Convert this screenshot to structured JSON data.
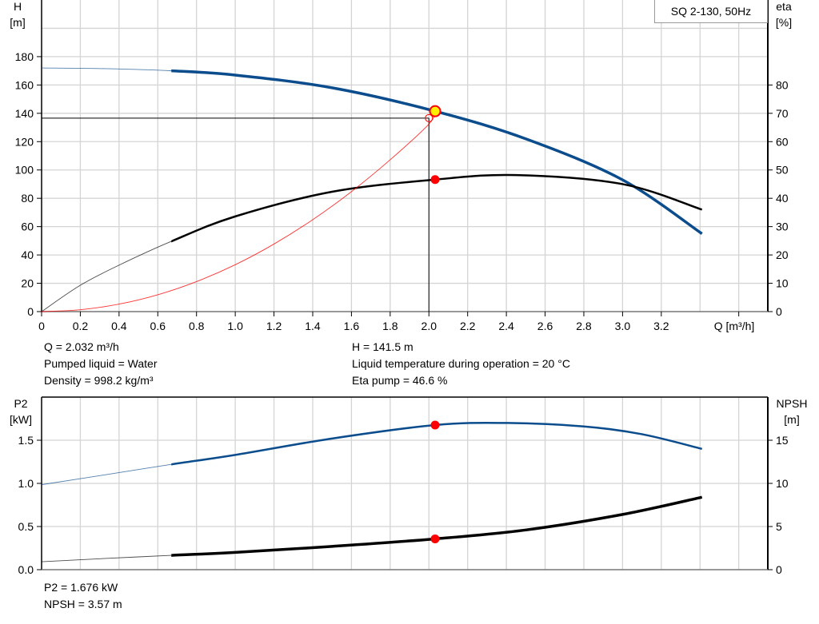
{
  "model_label": "SQ 2-130, 50Hz",
  "info_top": {
    "q": "Q = 2.032 m³/h",
    "liquid": "Pumped liquid = Water",
    "density": "Density = 998.2 kg/m³",
    "h": "H = 141.5 m",
    "temperature": "Liquid temperature during operation = 20 °C",
    "eta": "Eta pump = 46.6 %"
  },
  "info_bottom": {
    "p2": "P2 = 1.676 kW",
    "npsh": "NPSH = 3.57 m"
  },
  "colors": {
    "blue": "#0b4c8c",
    "black": "#000000",
    "red": "#ff0000",
    "yellow": "#ffee00",
    "grid": "#d4d4d4"
  },
  "chart_data": [
    {
      "type": "line",
      "xlabel": "Q [m³/h]",
      "ylabel": "H [m]",
      "y2label": "eta [%]",
      "xlim": [
        0,
        3.75
      ],
      "ylim": [
        0,
        220
      ],
      "y2lim": [
        0,
        110
      ],
      "xticks": [
        "0",
        "0.2",
        "0.4",
        "0.6",
        "0.8",
        "1.0",
        "1.2",
        "1.4",
        "1.6",
        "1.8",
        "2.0",
        "2.2",
        "2.4",
        "2.6",
        "2.8",
        "3.0",
        "3.2"
      ],
      "yticks": [
        "0",
        "20",
        "40",
        "60",
        "80",
        "100",
        "120",
        "140",
        "160",
        "180"
      ],
      "y2ticks": [
        "0",
        "10",
        "20",
        "30",
        "40",
        "50",
        "60",
        "70",
        "80"
      ],
      "grid": true,
      "series": [
        {
          "name": "H",
          "axis": "left",
          "color": "#0b4c8c",
          "thick_from": 0.67,
          "x": [
            0,
            0.33,
            0.67,
            1.0,
            1.5,
            2.032,
            2.5,
            3.0,
            3.41
          ],
          "y": [
            172,
            171.5,
            170,
            167,
            158,
            141.5,
            122,
            93,
            55
          ]
        },
        {
          "name": "eta",
          "axis": "right",
          "color": "#000000",
          "thick_from": 0.67,
          "x": [
            0,
            0.2,
            0.4,
            0.67,
            1.0,
            1.5,
            2.032,
            2.45,
            3.0,
            3.41
          ],
          "y": [
            0,
            9.3,
            16.4,
            24.8,
            33.6,
            42.3,
            46.6,
            48.2,
            45.0,
            36.0
          ]
        },
        {
          "name": "system",
          "axis": "left",
          "color": "#ff0000",
          "thin": true,
          "x": [
            0,
            0.2,
            0.4,
            0.6,
            0.8,
            1.0,
            1.2,
            1.4,
            1.6,
            1.8,
            2.0,
            2.032
          ],
          "y": [
            0,
            1.3,
            5.3,
            11.9,
            21.2,
            33.1,
            47.7,
            64.9,
            84.7,
            107.2,
            132.4,
            141.5
          ]
        }
      ],
      "operating_point": {
        "q": 2.032,
        "h": 141.5,
        "eta": 46.6
      },
      "reference_point": {
        "q": 2.0,
        "h": 136.6
      }
    },
    {
      "type": "line",
      "ylabel": "P2 [kW]",
      "y2label": "NPSH [m]",
      "xlim": [
        0,
        3.75
      ],
      "ylim": [
        0,
        2.0
      ],
      "y2lim": [
        0,
        20
      ],
      "yticks": [
        "0.0",
        "0.5",
        "1.0",
        "1.5"
      ],
      "y2ticks": [
        "0",
        "5",
        "10",
        "15"
      ],
      "grid": true,
      "series": [
        {
          "name": "P2",
          "axis": "left",
          "color": "#0b4c8c",
          "thick_from": 0.67,
          "x": [
            0,
            0.33,
            0.67,
            1.0,
            1.5,
            2.032,
            2.4,
            2.8,
            3.1,
            3.41
          ],
          "y": [
            0.985,
            1.1,
            1.22,
            1.33,
            1.52,
            1.676,
            1.7,
            1.66,
            1.57,
            1.4
          ]
        },
        {
          "name": "NPSH",
          "axis": "right",
          "color": "#000000",
          "thick_from": 0.67,
          "x": [
            0,
            0.33,
            0.67,
            1.0,
            1.5,
            2.032,
            2.5,
            3.0,
            3.41
          ],
          "y": [
            0.92,
            1.3,
            1.66,
            2.0,
            2.7,
            3.57,
            4.6,
            6.4,
            8.4
          ]
        }
      ],
      "operating_point": {
        "q": 2.032,
        "p2": 1.676,
        "npsh": 3.57
      }
    }
  ]
}
